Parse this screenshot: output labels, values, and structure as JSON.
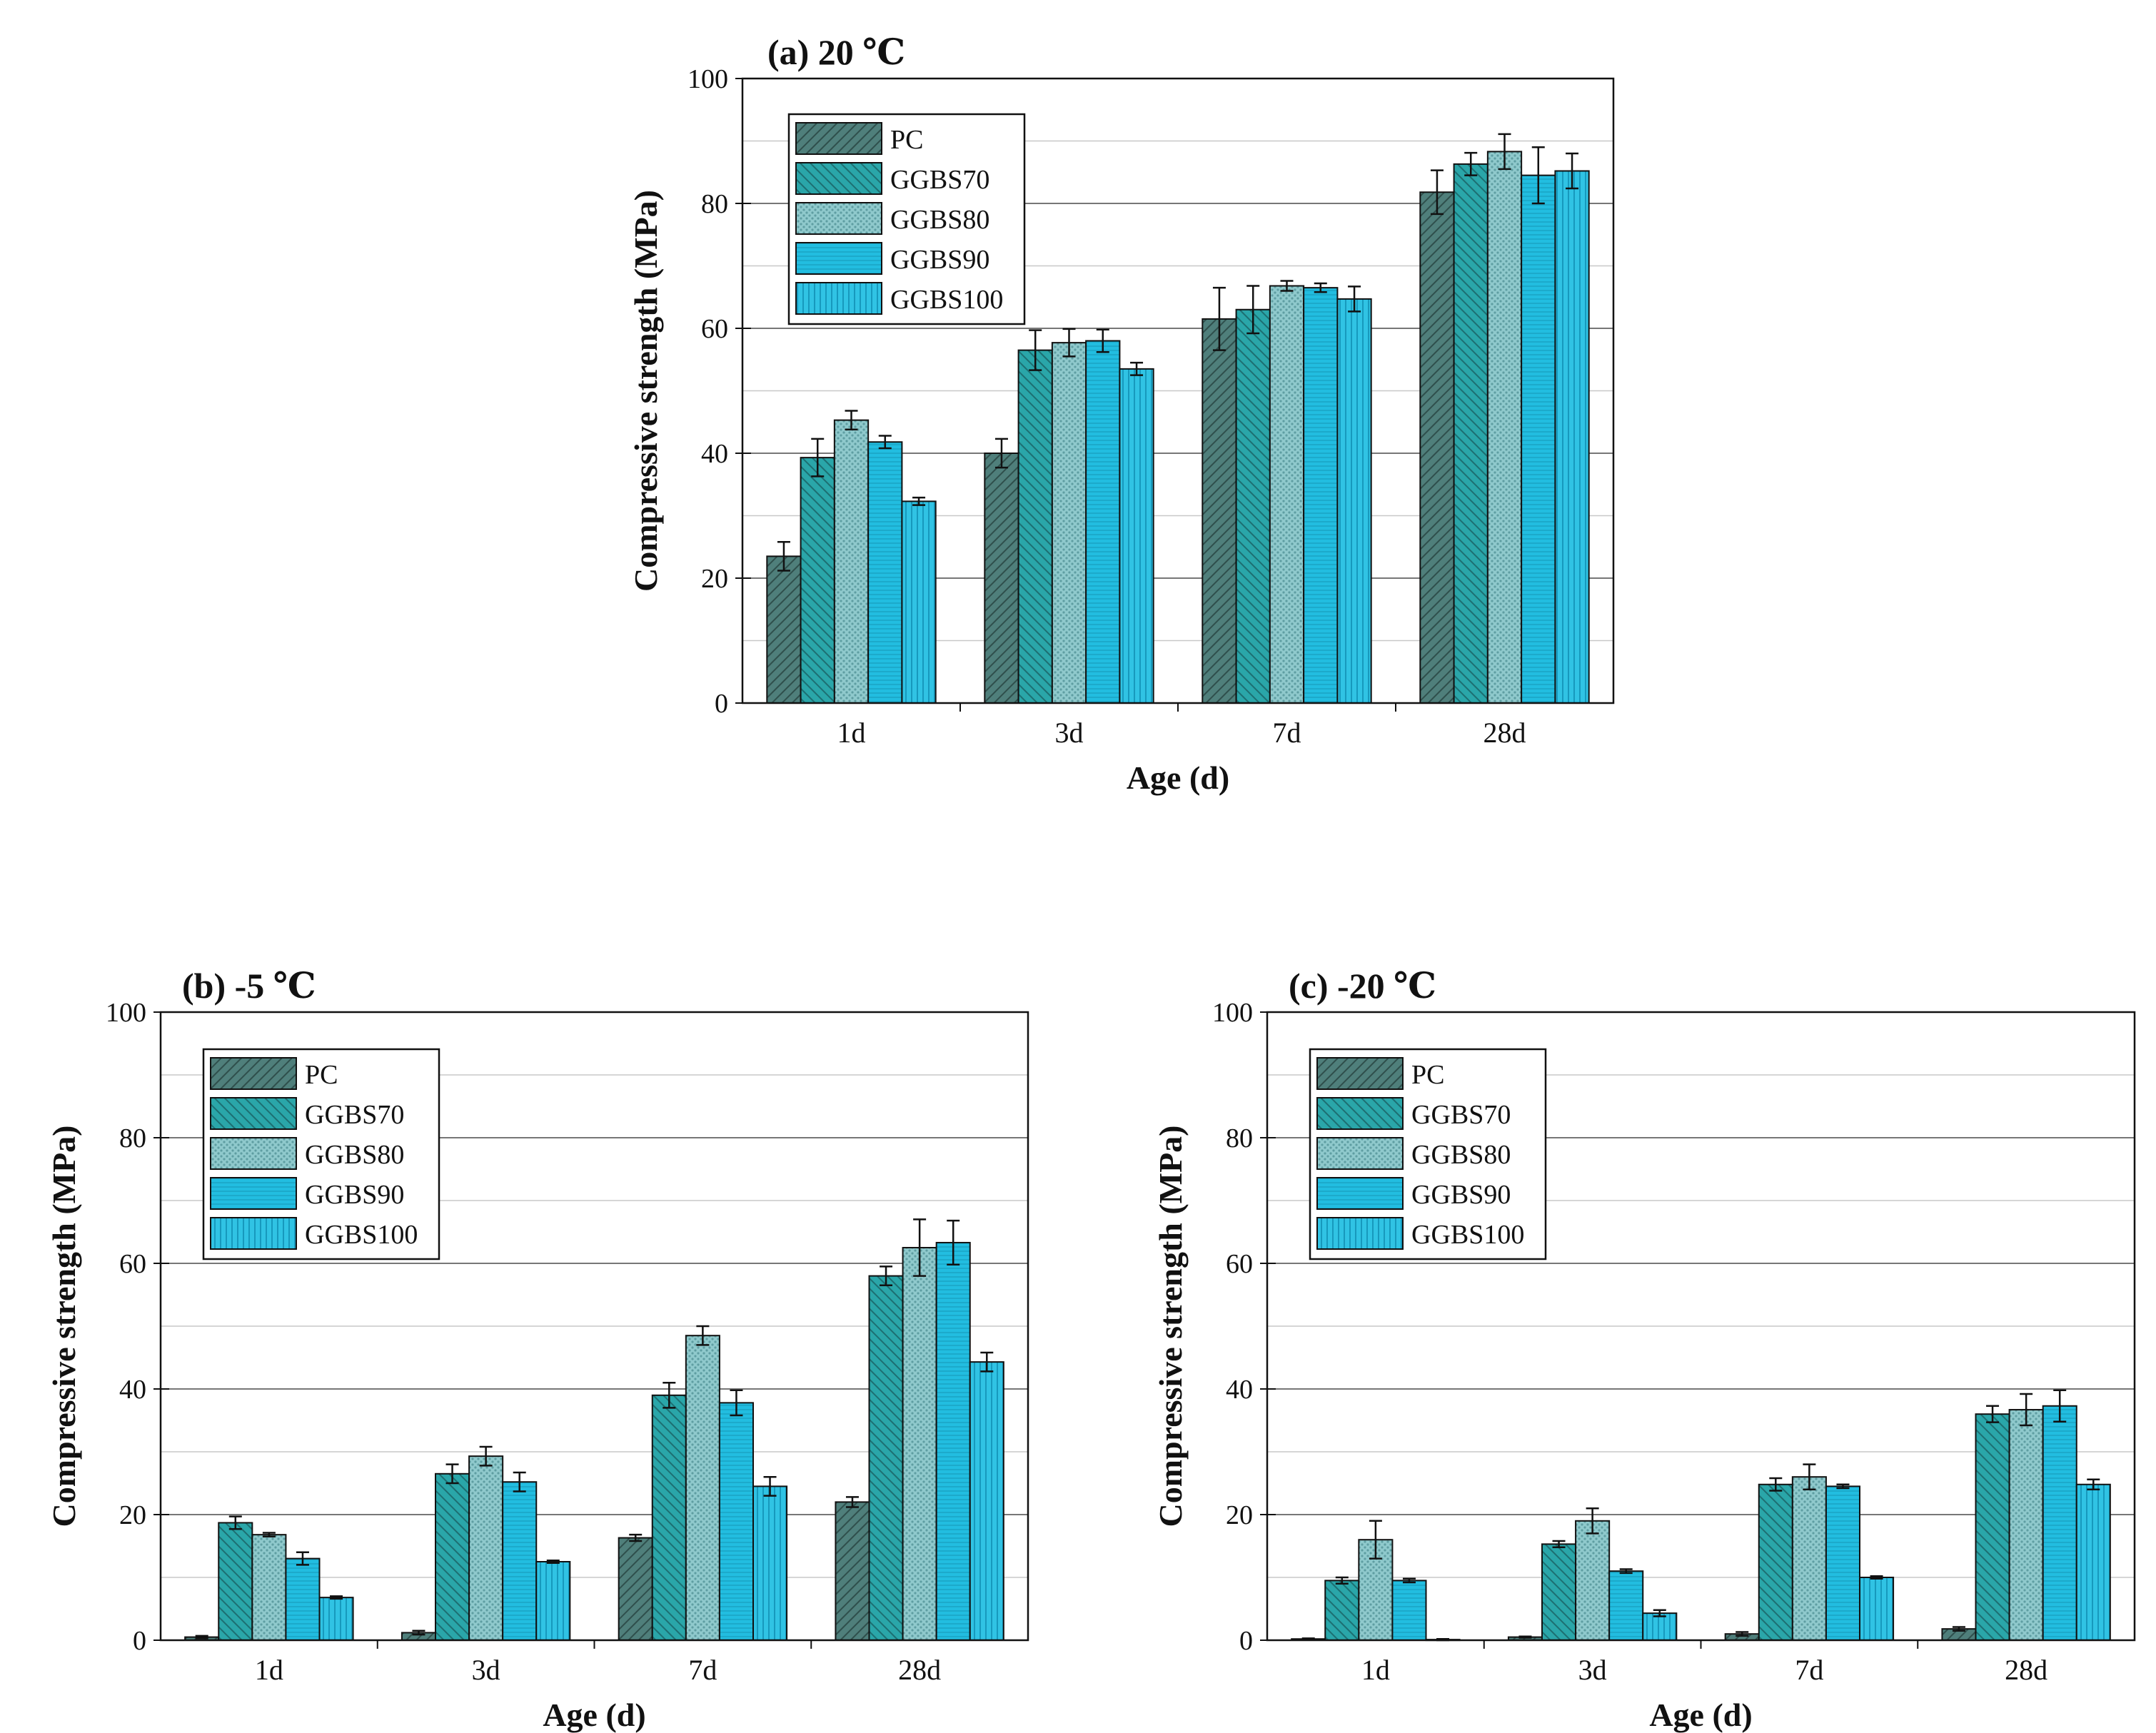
{
  "chart_data": [
    {
      "type": "bar",
      "title": "(a)  20 ℃",
      "xlabel": "Age (d)",
      "ylabel": "Compressive strength (MPa)",
      "ylim": [
        0,
        100
      ],
      "yticks": [
        0,
        20,
        40,
        60,
        80,
        100
      ],
      "grid": true,
      "legend_position": "top-left",
      "categories": [
        "1d",
        "3d",
        "7d",
        "28d"
      ],
      "series": [
        {
          "name": "PC",
          "values": [
            23.5,
            40.0,
            61.5,
            81.8
          ],
          "errors": [
            2.3,
            2.3,
            5.0,
            3.5
          ]
        },
        {
          "name": "GGBS70",
          "values": [
            39.3,
            56.5,
            63.0,
            86.3
          ],
          "errors": [
            3.0,
            3.2,
            3.8,
            1.8
          ]
        },
        {
          "name": "GGBS80",
          "values": [
            45.3,
            57.7,
            66.8,
            88.3
          ],
          "errors": [
            1.5,
            2.2,
            0.8,
            2.8
          ]
        },
        {
          "name": "GGBS90",
          "values": [
            41.8,
            58.0,
            66.5,
            84.5
          ],
          "errors": [
            1.0,
            1.8,
            0.7,
            4.5
          ]
        },
        {
          "name": "GGBS100",
          "values": [
            32.3,
            53.5,
            64.7,
            85.2
          ],
          "errors": [
            0.6,
            1.0,
            2.0,
            2.8
          ]
        }
      ]
    },
    {
      "type": "bar",
      "title": "(b)  -5 ℃",
      "xlabel": "Age (d)",
      "ylabel": "Compressive strength (MPa)",
      "ylim": [
        0,
        100
      ],
      "yticks": [
        0,
        20,
        40,
        60,
        80,
        100
      ],
      "grid": true,
      "legend_position": "top-left",
      "categories": [
        "1d",
        "3d",
        "7d",
        "28d"
      ],
      "series": [
        {
          "name": "PC",
          "values": [
            0.5,
            1.2,
            16.3,
            22.0
          ],
          "errors": [
            0.2,
            0.3,
            0.5,
            0.8
          ]
        },
        {
          "name": "GGBS70",
          "values": [
            18.7,
            26.5,
            39.0,
            58.0
          ],
          "errors": [
            1.0,
            1.5,
            2.0,
            1.5
          ]
        },
        {
          "name": "GGBS80",
          "values": [
            16.8,
            29.3,
            48.5,
            62.5
          ],
          "errors": [
            0.3,
            1.5,
            1.5,
            4.5
          ]
        },
        {
          "name": "GGBS90",
          "values": [
            13.0,
            25.2,
            37.8,
            63.3
          ],
          "errors": [
            1.0,
            1.5,
            2.0,
            3.5
          ]
        },
        {
          "name": "GGBS100",
          "values": [
            6.8,
            12.5,
            24.5,
            44.3
          ],
          "errors": [
            0.2,
            0.2,
            1.5,
            1.5
          ]
        }
      ]
    },
    {
      "type": "bar",
      "title": "(c)  -20 ℃",
      "xlabel": "Age (d)",
      "ylabel": "Compressive strength (MPa)",
      "ylim": [
        0,
        100
      ],
      "yticks": [
        0,
        20,
        40,
        60,
        80,
        100
      ],
      "grid": true,
      "legend_position": "top-left",
      "categories": [
        "1d",
        "3d",
        "7d",
        "28d"
      ],
      "series": [
        {
          "name": "PC",
          "values": [
            0.2,
            0.5,
            1.0,
            1.8
          ],
          "errors": [
            0.1,
            0.1,
            0.3,
            0.3
          ]
        },
        {
          "name": "GGBS70",
          "values": [
            9.5,
            15.3,
            24.8,
            36.0
          ],
          "errors": [
            0.5,
            0.5,
            1.0,
            1.3
          ]
        },
        {
          "name": "GGBS80",
          "values": [
            16.0,
            19.0,
            26.0,
            36.7
          ],
          "errors": [
            3.0,
            2.0,
            2.0,
            2.5
          ]
        },
        {
          "name": "GGBS90",
          "values": [
            9.5,
            11.0,
            24.5,
            37.3
          ],
          "errors": [
            0.3,
            0.3,
            0.3,
            2.5
          ]
        },
        {
          "name": "GGBS100",
          "values": [
            0.1,
            4.3,
            10.0,
            24.8
          ],
          "errors": [
            0.1,
            0.5,
            0.2,
            0.8
          ]
        }
      ]
    }
  ],
  "series_fills": [
    "#4f7f7b",
    "#2aa6a9",
    "#8fc9cc",
    "#22bde0",
    "#30c3e4"
  ]
}
